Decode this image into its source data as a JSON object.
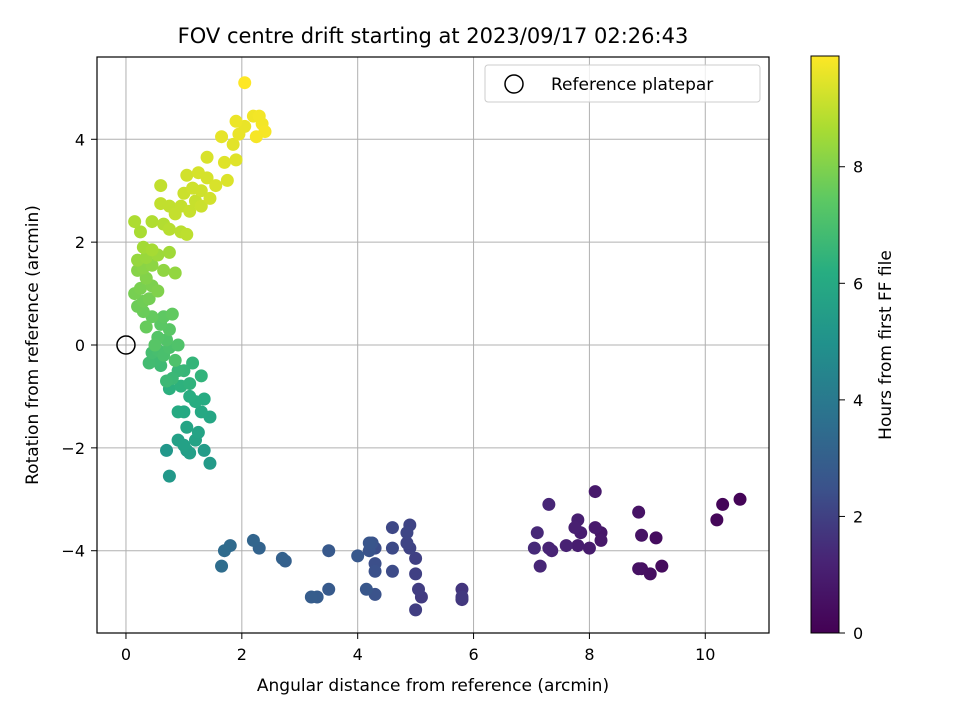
{
  "chart_data": {
    "type": "scatter",
    "title": "FOV centre drift starting at 2023/09/17 02:26:43",
    "xlabel": "Angular distance from reference (arcmin)",
    "ylabel": "Rotation from reference (arcmin)",
    "xlim": [
      -0.5,
      11.1
    ],
    "ylim": [
      -5.6,
      5.6
    ],
    "xticks": [
      0,
      2,
      4,
      6,
      8,
      10
    ],
    "yticks": [
      -4,
      -2,
      0,
      2,
      4
    ],
    "xtick_labels": [
      "0",
      "2",
      "4",
      "6",
      "8",
      "10"
    ],
    "ytick_labels": [
      "−4",
      "−2",
      "0",
      "2",
      "4"
    ],
    "grid": true,
    "colormap": "viridis",
    "colorbar": {
      "label": "Hours from first FF file",
      "range": [
        0,
        9.9
      ],
      "ticks": [
        0,
        2,
        4,
        6,
        8
      ],
      "tick_labels": [
        "0",
        "2",
        "4",
        "6",
        "8"
      ]
    },
    "legend": {
      "position": "top-right",
      "entries": [
        "Reference platepar"
      ]
    },
    "reference_point": {
      "x": 0,
      "y": 0
    },
    "points": [
      {
        "x": 10.6,
        "y": -3.0,
        "c": 0.1
      },
      {
        "x": 10.3,
        "y": -3.1,
        "c": 0.15
      },
      {
        "x": 10.2,
        "y": -3.4,
        "c": 0.2
      },
      {
        "x": 9.25,
        "y": -4.3,
        "c": 0.35
      },
      {
        "x": 9.15,
        "y": -3.75,
        "c": 0.4
      },
      {
        "x": 9.05,
        "y": -4.45,
        "c": 0.45
      },
      {
        "x": 8.9,
        "y": -4.35,
        "c": 0.5
      },
      {
        "x": 8.85,
        "y": -4.35,
        "c": 0.55
      },
      {
        "x": 8.9,
        "y": -3.7,
        "c": 0.6
      },
      {
        "x": 8.85,
        "y": -3.25,
        "c": 0.65
      },
      {
        "x": 8.2,
        "y": -3.65,
        "c": 0.75
      },
      {
        "x": 8.2,
        "y": -3.8,
        "c": 0.8
      },
      {
        "x": 8.1,
        "y": -2.85,
        "c": 0.85
      },
      {
        "x": 8.1,
        "y": -3.55,
        "c": 0.9
      },
      {
        "x": 8.0,
        "y": -3.95,
        "c": 0.95
      },
      {
        "x": 7.85,
        "y": -3.65,
        "c": 1.0
      },
      {
        "x": 7.8,
        "y": -3.9,
        "c": 1.0
      },
      {
        "x": 7.8,
        "y": -3.4,
        "c": 1.05
      },
      {
        "x": 7.75,
        "y": -3.55,
        "c": 1.1
      },
      {
        "x": 7.6,
        "y": -3.9,
        "c": 1.15
      },
      {
        "x": 7.35,
        "y": -4.0,
        "c": 1.2
      },
      {
        "x": 7.3,
        "y": -3.95,
        "c": 1.25
      },
      {
        "x": 7.3,
        "y": -3.1,
        "c": 1.3
      },
      {
        "x": 7.15,
        "y": -4.3,
        "c": 1.3
      },
      {
        "x": 7.1,
        "y": -3.65,
        "c": 1.35
      },
      {
        "x": 7.05,
        "y": -3.95,
        "c": 1.4
      },
      {
        "x": 5.8,
        "y": -4.75,
        "c": 1.7
      },
      {
        "x": 5.8,
        "y": -4.95,
        "c": 1.75
      },
      {
        "x": 5.8,
        "y": -4.9,
        "c": 1.8
      },
      {
        "x": 5.1,
        "y": -4.9,
        "c": 1.85
      },
      {
        "x": 5.05,
        "y": -4.75,
        "c": 1.9
      },
      {
        "x": 5.0,
        "y": -5.15,
        "c": 1.95
      },
      {
        "x": 5.0,
        "y": -4.45,
        "c": 2.0
      },
      {
        "x": 5.0,
        "y": -4.15,
        "c": 2.0
      },
      {
        "x": 4.9,
        "y": -3.95,
        "c": 2.05
      },
      {
        "x": 4.9,
        "y": -3.5,
        "c": 2.1
      },
      {
        "x": 4.85,
        "y": -3.85,
        "c": 2.1
      },
      {
        "x": 4.85,
        "y": -3.65,
        "c": 2.15
      },
      {
        "x": 4.6,
        "y": -3.55,
        "c": 2.2
      },
      {
        "x": 4.6,
        "y": -3.95,
        "c": 2.25
      },
      {
        "x": 4.6,
        "y": -4.4,
        "c": 2.3
      },
      {
        "x": 4.3,
        "y": -3.95,
        "c": 2.35
      },
      {
        "x": 4.3,
        "y": -4.25,
        "c": 2.4
      },
      {
        "x": 4.3,
        "y": -4.4,
        "c": 2.45
      },
      {
        "x": 4.3,
        "y": -4.85,
        "c": 2.5
      },
      {
        "x": 4.25,
        "y": -3.85,
        "c": 2.5
      },
      {
        "x": 4.2,
        "y": -4.0,
        "c": 2.55
      },
      {
        "x": 4.2,
        "y": -3.85,
        "c": 2.6
      },
      {
        "x": 4.15,
        "y": -4.75,
        "c": 2.65
      },
      {
        "x": 4.0,
        "y": -4.1,
        "c": 2.7
      },
      {
        "x": 3.5,
        "y": -4.0,
        "c": 2.75
      },
      {
        "x": 3.5,
        "y": -4.75,
        "c": 2.8
      },
      {
        "x": 3.3,
        "y": -4.9,
        "c": 2.85
      },
      {
        "x": 3.2,
        "y": -4.9,
        "c": 2.9
      },
      {
        "x": 2.75,
        "y": -4.2,
        "c": 3.0
      },
      {
        "x": 2.7,
        "y": -4.15,
        "c": 3.05
      },
      {
        "x": 2.3,
        "y": -3.95,
        "c": 3.15
      },
      {
        "x": 2.2,
        "y": -3.8,
        "c": 3.2
      },
      {
        "x": 1.8,
        "y": -3.9,
        "c": 3.4
      },
      {
        "x": 1.7,
        "y": -4.0,
        "c": 3.45
      },
      {
        "x": 1.65,
        "y": -4.3,
        "c": 3.5
      },
      {
        "x": 0.7,
        "y": -2.05,
        "c": 5.2
      },
      {
        "x": 0.75,
        "y": -2.55,
        "c": 5.25
      },
      {
        "x": 1.45,
        "y": -2.3,
        "c": 5.35
      },
      {
        "x": 1.35,
        "y": -2.05,
        "c": 5.4
      },
      {
        "x": 1.05,
        "y": -2.05,
        "c": 5.5
      },
      {
        "x": 1.1,
        "y": -2.1,
        "c": 5.55
      },
      {
        "x": 0.9,
        "y": -1.85,
        "c": 5.6
      },
      {
        "x": 1.0,
        "y": -1.95,
        "c": 5.65
      },
      {
        "x": 1.2,
        "y": -1.85,
        "c": 5.7
      },
      {
        "x": 1.25,
        "y": -1.7,
        "c": 5.75
      },
      {
        "x": 1.05,
        "y": -1.6,
        "c": 5.8
      },
      {
        "x": 1.45,
        "y": -1.4,
        "c": 5.9
      },
      {
        "x": 1.3,
        "y": -1.3,
        "c": 5.95
      },
      {
        "x": 1.0,
        "y": -1.3,
        "c": 6.0
      },
      {
        "x": 0.9,
        "y": -1.3,
        "c": 6.05
      },
      {
        "x": 1.35,
        "y": -1.05,
        "c": 6.1
      },
      {
        "x": 1.2,
        "y": -1.1,
        "c": 6.15
      },
      {
        "x": 1.1,
        "y": -1.0,
        "c": 6.2
      },
      {
        "x": 0.75,
        "y": -0.85,
        "c": 6.3
      },
      {
        "x": 0.95,
        "y": -0.8,
        "c": 6.35
      },
      {
        "x": 1.1,
        "y": -0.75,
        "c": 6.4
      },
      {
        "x": 1.3,
        "y": -0.6,
        "c": 6.45
      },
      {
        "x": 1.15,
        "y": -0.35,
        "c": 6.5
      },
      {
        "x": 1.0,
        "y": -0.5,
        "c": 6.55
      },
      {
        "x": 0.9,
        "y": -0.5,
        "c": 6.6
      },
      {
        "x": 0.8,
        "y": -0.65,
        "c": 6.65
      },
      {
        "x": 0.7,
        "y": -0.7,
        "c": 6.7
      },
      {
        "x": 0.6,
        "y": -0.4,
        "c": 6.75
      },
      {
        "x": 0.5,
        "y": -0.3,
        "c": 6.8
      },
      {
        "x": 0.4,
        "y": -0.35,
        "c": 6.85
      },
      {
        "x": 0.45,
        "y": -0.15,
        "c": 6.9
      },
      {
        "x": 0.55,
        "y": -0.1,
        "c": 6.95
      },
      {
        "x": 0.65,
        "y": -0.2,
        "c": 7.0
      },
      {
        "x": 0.75,
        "y": -0.05,
        "c": 7.05
      },
      {
        "x": 0.85,
        "y": -0.3,
        "c": 7.1
      },
      {
        "x": 0.9,
        "y": 0.0,
        "c": 7.15
      },
      {
        "x": 0.7,
        "y": 0.1,
        "c": 7.2
      },
      {
        "x": 0.55,
        "y": 0.15,
        "c": 7.25
      },
      {
        "x": 0.5,
        "y": 0.0,
        "c": 7.3
      },
      {
        "x": 0.75,
        "y": 0.3,
        "c": 7.35
      },
      {
        "x": 0.6,
        "y": 0.4,
        "c": 7.4
      },
      {
        "x": 0.65,
        "y": 0.55,
        "c": 7.45
      },
      {
        "x": 0.8,
        "y": 0.6,
        "c": 7.5
      },
      {
        "x": 0.45,
        "y": 0.55,
        "c": 7.55
      },
      {
        "x": 0.35,
        "y": 0.35,
        "c": 7.6
      },
      {
        "x": 0.3,
        "y": 0.65,
        "c": 7.65
      },
      {
        "x": 0.2,
        "y": 0.75,
        "c": 7.7
      },
      {
        "x": 0.3,
        "y": 0.85,
        "c": 7.75
      },
      {
        "x": 0.4,
        "y": 0.9,
        "c": 7.8
      },
      {
        "x": 0.15,
        "y": 1.0,
        "c": 7.85
      },
      {
        "x": 0.25,
        "y": 1.1,
        "c": 7.9
      },
      {
        "x": 0.45,
        "y": 1.15,
        "c": 7.95
      },
      {
        "x": 0.55,
        "y": 1.05,
        "c": 8.0
      },
      {
        "x": 0.35,
        "y": 1.3,
        "c": 8.05
      },
      {
        "x": 0.2,
        "y": 1.45,
        "c": 8.1
      },
      {
        "x": 0.3,
        "y": 1.5,
        "c": 8.15
      },
      {
        "x": 0.45,
        "y": 1.55,
        "c": 8.2
      },
      {
        "x": 0.65,
        "y": 1.45,
        "c": 8.25
      },
      {
        "x": 0.85,
        "y": 1.4,
        "c": 8.3
      },
      {
        "x": 0.2,
        "y": 1.65,
        "c": 8.35
      },
      {
        "x": 0.35,
        "y": 1.7,
        "c": 8.4
      },
      {
        "x": 0.55,
        "y": 1.75,
        "c": 8.45
      },
      {
        "x": 0.75,
        "y": 1.8,
        "c": 8.5
      },
      {
        "x": 0.3,
        "y": 1.9,
        "c": 8.55
      },
      {
        "x": 0.45,
        "y": 1.85,
        "c": 8.6
      },
      {
        "x": 0.25,
        "y": 2.2,
        "c": 8.65
      },
      {
        "x": 0.15,
        "y": 2.4,
        "c": 8.7
      },
      {
        "x": 0.45,
        "y": 2.4,
        "c": 8.75
      },
      {
        "x": 0.65,
        "y": 2.35,
        "c": 8.8
      },
      {
        "x": 0.75,
        "y": 2.25,
        "c": 8.85
      },
      {
        "x": 0.95,
        "y": 2.2,
        "c": 8.9
      },
      {
        "x": 1.05,
        "y": 2.15,
        "c": 8.95
      },
      {
        "x": 0.6,
        "y": 2.75,
        "c": 9.0
      },
      {
        "x": 0.75,
        "y": 2.7,
        "c": 9.0
      },
      {
        "x": 0.85,
        "y": 2.55,
        "c": 9.05
      },
      {
        "x": 0.95,
        "y": 2.7,
        "c": 9.05
      },
      {
        "x": 1.1,
        "y": 2.6,
        "c": 9.1
      },
      {
        "x": 1.2,
        "y": 2.8,
        "c": 9.1
      },
      {
        "x": 1.3,
        "y": 2.7,
        "c": 9.15
      },
      {
        "x": 1.0,
        "y": 2.95,
        "c": 9.15
      },
      {
        "x": 1.15,
        "y": 3.05,
        "c": 9.2
      },
      {
        "x": 1.3,
        "y": 3.0,
        "c": 9.2
      },
      {
        "x": 1.45,
        "y": 2.85,
        "c": 9.25
      },
      {
        "x": 1.05,
        "y": 3.3,
        "c": 9.25
      },
      {
        "x": 1.25,
        "y": 3.35,
        "c": 9.3
      },
      {
        "x": 1.4,
        "y": 3.25,
        "c": 9.3
      },
      {
        "x": 1.55,
        "y": 3.1,
        "c": 9.35
      },
      {
        "x": 0.6,
        "y": 3.1,
        "c": 9.0
      },
      {
        "x": 1.4,
        "y": 3.65,
        "c": 9.35
      },
      {
        "x": 1.75,
        "y": 3.2,
        "c": 9.4
      },
      {
        "x": 1.7,
        "y": 3.55,
        "c": 9.45
      },
      {
        "x": 1.9,
        "y": 3.6,
        "c": 9.45
      },
      {
        "x": 1.85,
        "y": 3.9,
        "c": 9.5
      },
      {
        "x": 1.65,
        "y": 4.05,
        "c": 9.55
      },
      {
        "x": 1.95,
        "y": 4.1,
        "c": 9.6
      },
      {
        "x": 2.05,
        "y": 4.25,
        "c": 9.6
      },
      {
        "x": 1.9,
        "y": 4.35,
        "c": 9.65
      },
      {
        "x": 2.2,
        "y": 4.45,
        "c": 9.7
      },
      {
        "x": 2.3,
        "y": 4.45,
        "c": 9.75
      },
      {
        "x": 2.35,
        "y": 4.3,
        "c": 9.75
      },
      {
        "x": 2.4,
        "y": 4.15,
        "c": 9.8
      },
      {
        "x": 2.25,
        "y": 4.05,
        "c": 9.8
      },
      {
        "x": 2.05,
        "y": 5.1,
        "c": 9.9
      }
    ]
  }
}
